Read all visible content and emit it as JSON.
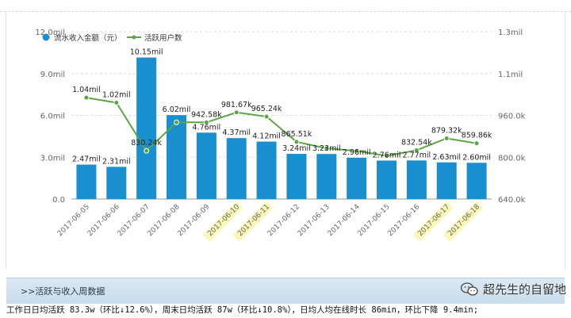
{
  "chart_data": {
    "type": "bar+line",
    "legend": [
      {
        "name": "流水收入金额（元）",
        "marker": "bar",
        "color": "#1a8fd0"
      },
      {
        "name": "活跃用户数",
        "marker": "line",
        "color": "#5aa642"
      }
    ],
    "legend_position": "top-left",
    "categories": [
      "2017-06-05",
      "2017-06-06",
      "2017-06-07",
      "2017-06-08",
      "2017-06-09",
      "2017-06-10",
      "2017-06-11",
      "2017-06-12",
      "2017-06-13",
      "2017-06-14",
      "2017-06-15",
      "2017-06-16",
      "2017-06-17",
      "2017-06-18"
    ],
    "highlighted_categories": [
      "2017-06-10",
      "2017-06-11",
      "2017-06-17",
      "2017-06-18"
    ],
    "bars": {
      "name": "流水收入金额（元）",
      "values": [
        2.47,
        2.31,
        10.15,
        6.02,
        4.76,
        4.37,
        4.12,
        3.24,
        3.23,
        2.96,
        2.76,
        2.77,
        2.63,
        2.6
      ],
      "labels": [
        "2.47mil",
        "2.31mil",
        "10.15mil",
        "6.02mil",
        "4.76mil",
        "4.37mil",
        "4.12mil",
        "3.24mil",
        "3.23mil",
        "2.96mil",
        "2.76mil",
        "2.77mil",
        "2.63mil",
        "2.60mil"
      ],
      "color": "#1a8fd0"
    },
    "line": {
      "name": "活跃用户数",
      "values": [
        1040,
        1020,
        830.24,
        942.58,
        942.58,
        981.67,
        965.24,
        865.51,
        840,
        830,
        810,
        832.54,
        879.32,
        859.86
      ],
      "labels": [
        "1.04mil",
        "1.02mil",
        "830.24k",
        "",
        "942.58k",
        "981.67k",
        "965.24k",
        "865.51k",
        "",
        "",
        "",
        "832.54k",
        "879.32k",
        "859.86k"
      ],
      "color": "#5aa642"
    },
    "y_left": {
      "min": 0,
      "max": 12,
      "ticks": [
        "0.0",
        "3.0mil",
        "6.0mil",
        "9.0mil",
        "12.0mil"
      ]
    },
    "y_right": {
      "min": 640,
      "max": 1300,
      "ticks": [
        "640.0k",
        "800.0k",
        "960.0k",
        "1.1mil",
        "1.3mil"
      ]
    },
    "grid": "horizontal-dashed"
  },
  "section": {
    "title": ">>活跃与收入周数据"
  },
  "watermark": {
    "text": "超先生的自留地"
  },
  "summary_text": "工作日日均活跃 83.3w（环比↓12.6%），周末日均活跃 87w（环比↓10.8%），日均人均在线时长 86min，环比下降 9.4min;"
}
